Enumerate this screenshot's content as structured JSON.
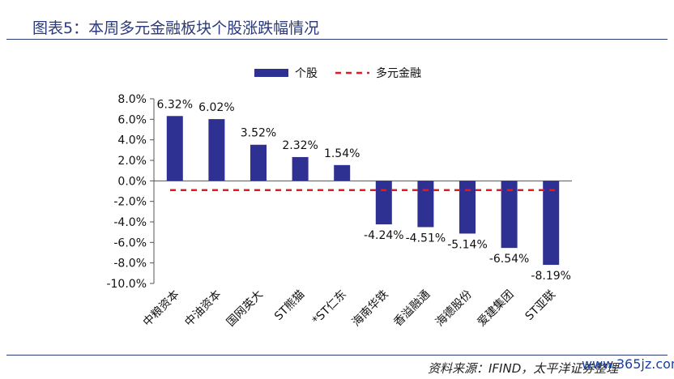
{
  "title": "图表5：本周多元金融板块个股涨跌幅情况",
  "source": "资料来源：IFIND，太平洋证券整理",
  "watermark": "www.365jz.com",
  "colors": {
    "bar": "#2e3192",
    "line": "#e8191c",
    "title": "#2b3a7a"
  },
  "chart_data": {
    "type": "bar",
    "categories": [
      "中粮资本",
      "中油资本",
      "国网英大",
      "ST熊猫",
      "*ST仁东",
      "海南华铁",
      "香溢融通",
      "海德股份",
      "爱建集团",
      "ST亚联"
    ],
    "series": [
      {
        "name": "个股",
        "type": "bar",
        "values": [
          6.32,
          6.02,
          3.52,
          2.32,
          1.54,
          -4.24,
          -4.51,
          -5.14,
          -6.54,
          -8.19
        ]
      },
      {
        "name": "多元金融",
        "type": "dashed-line",
        "value": -0.9
      }
    ],
    "data_labels": [
      "6.32%",
      "6.02%",
      "3.52%",
      "2.32%",
      "1.54%",
      "-4.24%",
      "-4.51%",
      "-5.14%",
      "-6.54%",
      "-8.19%"
    ],
    "yticks": [
      "8.0%",
      "6.0%",
      "4.0%",
      "2.0%",
      "0.0%",
      "-2.0%",
      "-4.0%",
      "-6.0%",
      "-8.0%",
      "-10.0%"
    ],
    "ylim": [
      -10,
      8
    ],
    "legend_position": "top-center",
    "grid": false
  }
}
